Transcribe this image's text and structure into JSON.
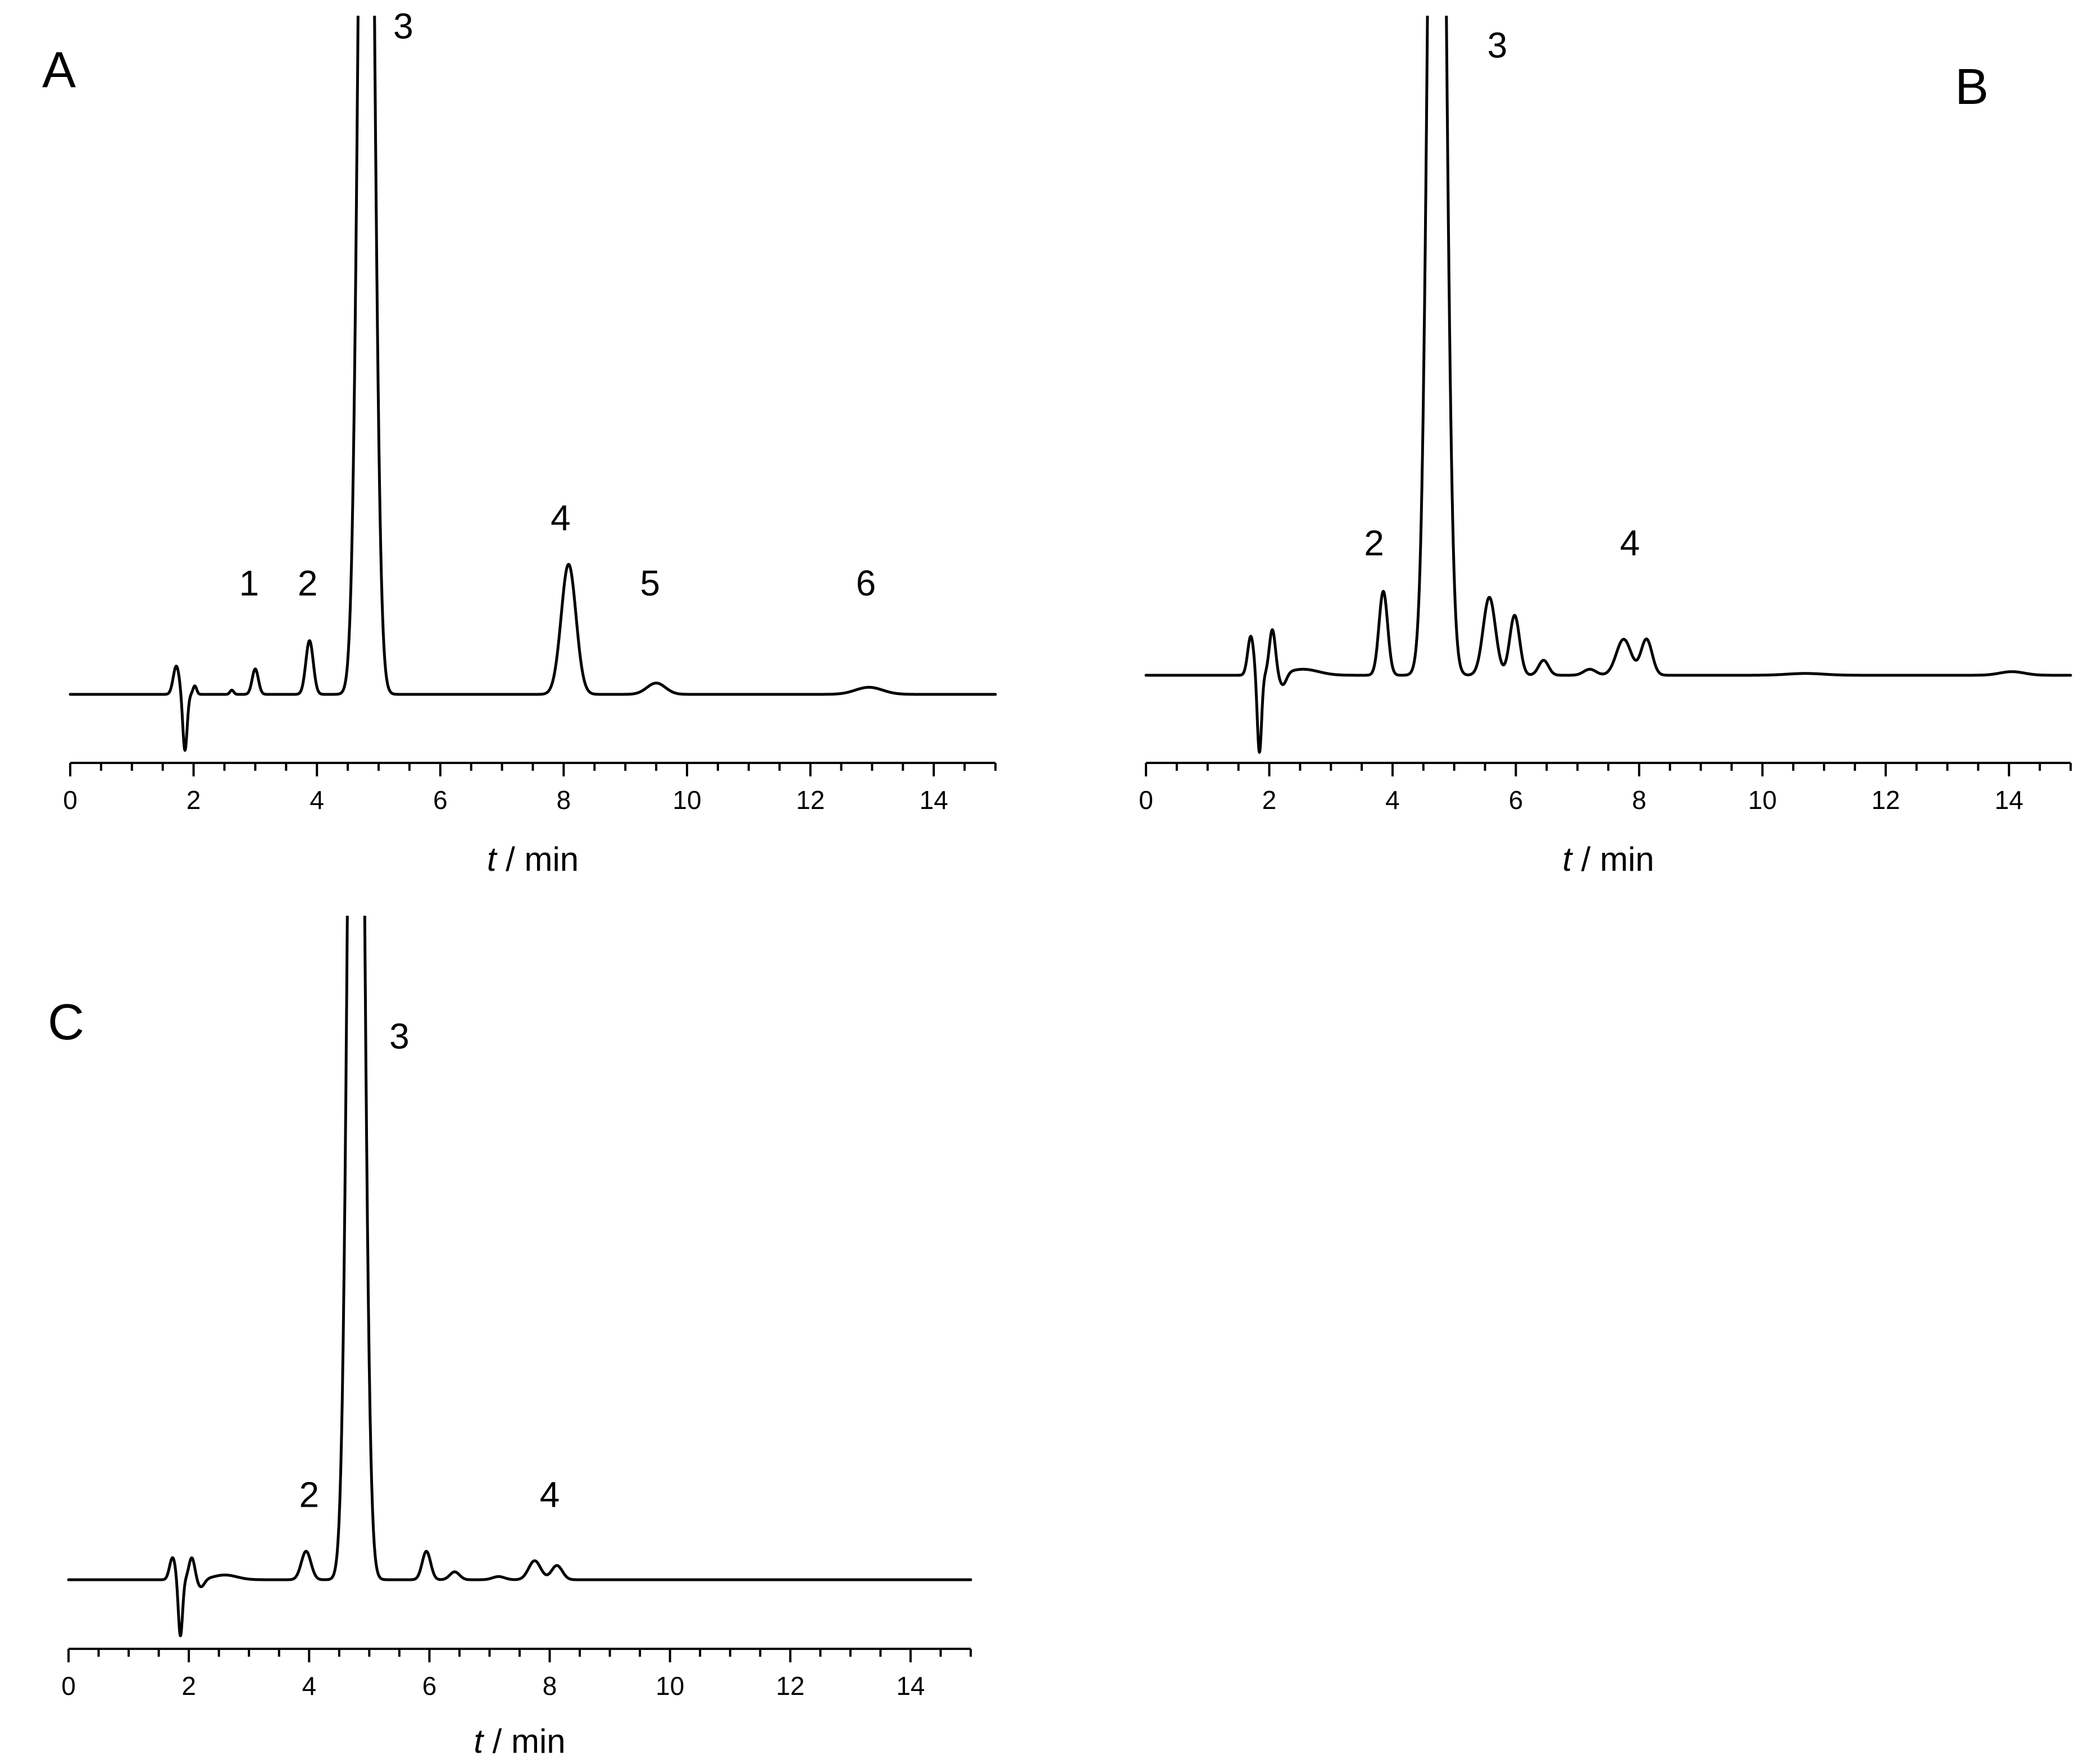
{
  "chart_data": [
    {
      "type": "line",
      "panel_label": "A",
      "x_axis": {
        "label_italic": "t",
        "label_rest": " / min",
        "range": [
          0,
          15
        ],
        "ticks": [
          "0",
          "2",
          "4",
          "6",
          "8",
          "10",
          "12",
          "14"
        ]
      },
      "y_axis": {
        "visible": false,
        "range": [
          -0.25,
          2.4
        ],
        "clipped": true
      },
      "baseline": 0,
      "peaks": [
        {
          "x": 1.72,
          "h": 0.1,
          "w": 0.05
        },
        {
          "x": 1.86,
          "h": -0.2,
          "w": 0.035
        },
        {
          "x": 2.02,
          "h": 0.03,
          "w": 0.03
        },
        {
          "x": 2.62,
          "h": 0.015,
          "w": 0.03
        },
        {
          "x": 3.0,
          "h": 0.09,
          "w": 0.05
        },
        {
          "x": 3.88,
          "h": 0.19,
          "w": 0.06
        },
        {
          "x": 4.8,
          "h": 5.0,
          "w": 0.11
        },
        {
          "x": 8.08,
          "h": 0.46,
          "w": 0.12
        },
        {
          "x": 9.5,
          "h": 0.04,
          "w": 0.15
        },
        {
          "x": 12.95,
          "h": 0.025,
          "w": 0.22
        }
      ],
      "peak_labels": [
        {
          "text": "1",
          "x": 2.9,
          "y": 0.35
        },
        {
          "text": "2",
          "x": 3.85,
          "y": 0.35
        },
        {
          "text": "3",
          "x": 5.4,
          "y": 2.32
        },
        {
          "text": "4",
          "x": 7.95,
          "y": 0.58
        },
        {
          "text": "5",
          "x": 9.4,
          "y": 0.35
        },
        {
          "text": "6",
          "x": 12.9,
          "y": 0.35
        }
      ]
    },
    {
      "type": "line",
      "panel_label": "B",
      "x_axis": {
        "label_italic": "t",
        "label_rest": " / min",
        "range": [
          0,
          15
        ],
        "ticks": [
          "0",
          "2",
          "4",
          "6",
          "8",
          "10",
          "12",
          "14"
        ]
      },
      "y_axis": {
        "visible": false,
        "range": [
          -0.3,
          2.2
        ],
        "clipped": true
      },
      "baseline": 0,
      "peaks": [
        {
          "x": 1.7,
          "h": 0.13,
          "w": 0.05
        },
        {
          "x": 1.84,
          "h": -0.26,
          "w": 0.035
        },
        {
          "x": 2.05,
          "h": 0.15,
          "w": 0.05
        },
        {
          "x": 2.22,
          "h": -0.04,
          "w": 0.06
        },
        {
          "x": 2.55,
          "h": 0.02,
          "w": 0.25
        },
        {
          "x": 3.85,
          "h": 0.28,
          "w": 0.07
        },
        {
          "x": 4.72,
          "h": 5.0,
          "w": 0.12
        },
        {
          "x": 5.57,
          "h": 0.26,
          "w": 0.1
        },
        {
          "x": 5.98,
          "h": 0.2,
          "w": 0.08
        },
        {
          "x": 6.45,
          "h": 0.05,
          "w": 0.08
        },
        {
          "x": 7.2,
          "h": 0.02,
          "w": 0.1
        },
        {
          "x": 7.75,
          "h": 0.12,
          "w": 0.12
        },
        {
          "x": 8.12,
          "h": 0.12,
          "w": 0.09
        },
        {
          "x": 10.7,
          "h": 0.006,
          "w": 0.3
        },
        {
          "x": 14.05,
          "h": 0.012,
          "w": 0.2
        }
      ],
      "peak_labels": [
        {
          "text": "2",
          "x": 3.7,
          "y": 0.4
        },
        {
          "text": "3",
          "x": 5.7,
          "y": 2.06
        },
        {
          "text": "4",
          "x": 7.85,
          "y": 0.4
        }
      ]
    },
    {
      "type": "line",
      "panel_label": "C",
      "x_axis": {
        "label_italic": "t",
        "label_rest": " / min",
        "range": [
          0,
          15
        ],
        "ticks": [
          "0",
          "2",
          "4",
          "6",
          "8",
          "10",
          "12",
          "14"
        ]
      },
      "y_axis": {
        "visible": false,
        "range": [
          -0.22,
          2.1
        ],
        "clipped": true
      },
      "baseline": 0,
      "peaks": [
        {
          "x": 1.73,
          "h": 0.07,
          "w": 0.05
        },
        {
          "x": 1.86,
          "h": -0.18,
          "w": 0.035
        },
        {
          "x": 2.05,
          "h": 0.07,
          "w": 0.05
        },
        {
          "x": 2.2,
          "h": -0.025,
          "w": 0.06
        },
        {
          "x": 2.6,
          "h": 0.015,
          "w": 0.2
        },
        {
          "x": 3.95,
          "h": 0.09,
          "w": 0.08
        },
        {
          "x": 4.78,
          "h": 5.0,
          "w": 0.11
        },
        {
          "x": 5.95,
          "h": 0.09,
          "w": 0.07
        },
        {
          "x": 6.42,
          "h": 0.025,
          "w": 0.08
        },
        {
          "x": 7.15,
          "h": 0.01,
          "w": 0.1
        },
        {
          "x": 7.75,
          "h": 0.06,
          "w": 0.1
        },
        {
          "x": 8.12,
          "h": 0.045,
          "w": 0.09
        }
      ],
      "peak_labels": [
        {
          "text": "2",
          "x": 4.0,
          "y": 0.23
        },
        {
          "text": "3",
          "x": 5.5,
          "y": 1.68
        },
        {
          "text": "4",
          "x": 8.0,
          "y": 0.23
        }
      ]
    }
  ]
}
